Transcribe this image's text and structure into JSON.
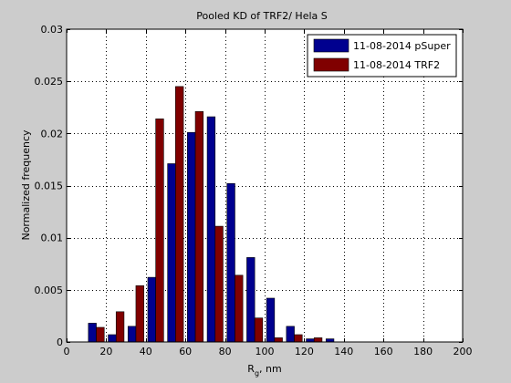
{
  "chart_data": {
    "type": "bar",
    "title": "Pooled KD of TRF2/ Hela S",
    "xlabel": "R",
    "xlabel_sub": "g",
    "xlabel_suffix": ", nm",
    "ylabel": "Normalized frequency",
    "xlim": [
      0,
      200
    ],
    "ylim": [
      0,
      0.03
    ],
    "xticks": [
      0,
      20,
      40,
      60,
      80,
      100,
      120,
      140,
      160,
      180,
      200
    ],
    "yticks": [
      0,
      0.005,
      0.01,
      0.015,
      0.02,
      0.025,
      0.03
    ],
    "ytick_labels": [
      "0",
      "0.005",
      "0.01",
      "0.015",
      "0.02",
      "0.025",
      "0.03"
    ],
    "grid": true,
    "legend_position": "top-right",
    "x": [
      15,
      25,
      35,
      45,
      55,
      65,
      75,
      85,
      95,
      105,
      115,
      125,
      135
    ],
    "series": [
      {
        "name": "11-08-2014 pSuper",
        "color": "#00008f",
        "values": [
          0.0018,
          0.0007,
          0.0015,
          0.0062,
          0.0171,
          0.0201,
          0.0216,
          0.0152,
          0.0081,
          0.0042,
          0.0015,
          0.0003,
          0.0003
        ]
      },
      {
        "name": "11-08-2014 TRF2",
        "color": "#800000",
        "values": [
          0.0014,
          0.0029,
          0.0054,
          0.0214,
          0.0245,
          0.0221,
          0.0111,
          0.0064,
          0.0023,
          0.0004,
          0.0007,
          0.0004,
          0.0
        ]
      }
    ]
  }
}
